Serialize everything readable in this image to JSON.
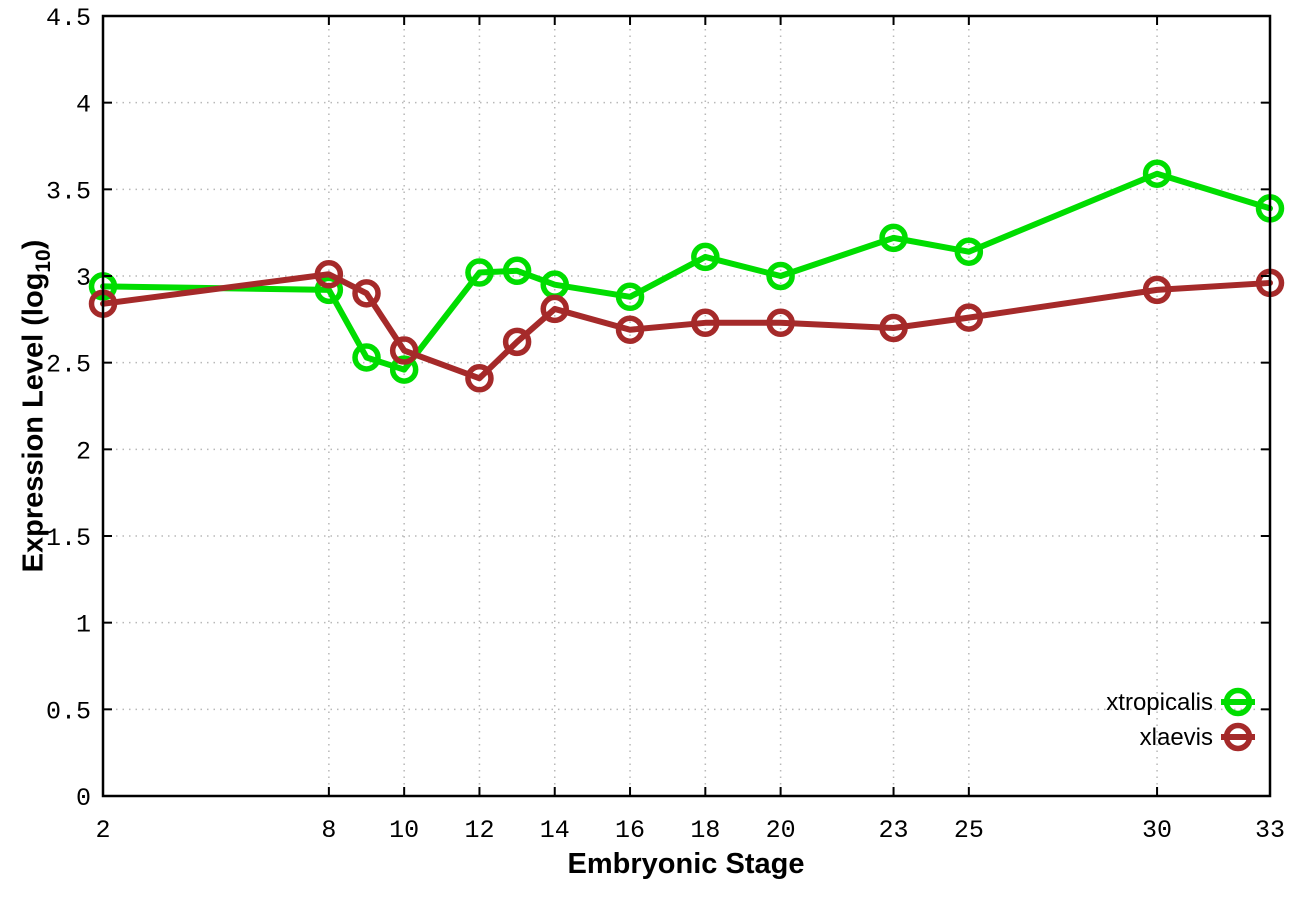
{
  "figure": {
    "background": "#ffffff",
    "border_color": "#000000",
    "grid_color": "#b8b8b8",
    "tick_label_color": "#000000"
  },
  "chart_data": {
    "type": "line",
    "title": "",
    "xlabel": "Embryonic Stage",
    "ylabel_main": "Expression Level (log",
    "ylabel_sub": "10",
    "ylabel_close": ")",
    "xlim": [
      2,
      33
    ],
    "ylim": [
      0,
      4.5
    ],
    "grid": true,
    "legend_position": "bottom-right",
    "xticks": [
      2,
      8,
      10,
      12,
      14,
      16,
      18,
      20,
      23,
      25,
      30,
      33
    ],
    "yticks": [
      0,
      0.5,
      1,
      1.5,
      2,
      2.5,
      3,
      3.5,
      4,
      4.5
    ],
    "x": [
      2,
      8,
      9,
      10,
      12,
      13,
      14,
      16,
      18,
      20,
      23,
      25,
      30,
      33
    ],
    "series": [
      {
        "name": "xtropicalis",
        "color": "#00dd00",
        "values": [
          2.94,
          2.92,
          2.53,
          2.46,
          3.02,
          3.03,
          2.95,
          2.88,
          3.11,
          3.0,
          3.22,
          3.14,
          3.59,
          3.39
        ]
      },
      {
        "name": "xlaevis",
        "color": "#a52a2a",
        "values": [
          2.84,
          3.01,
          2.9,
          2.57,
          2.41,
          2.62,
          2.81,
          2.69,
          2.73,
          2.73,
          2.7,
          2.76,
          2.92,
          2.96
        ]
      }
    ]
  }
}
